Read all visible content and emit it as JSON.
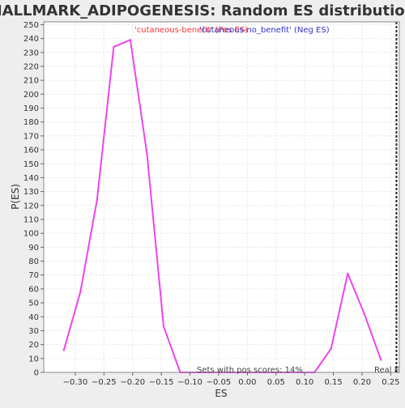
{
  "chart_data": {
    "type": "line",
    "title": "HALLMARK_ADIPOGENESIS: Random ES distribution",
    "xlabel": "ES",
    "ylabel": "P(ES)",
    "xlim": [
      -0.355,
      0.265
    ],
    "ylim": [
      0,
      252
    ],
    "xticks": [
      -0.3,
      -0.25,
      -0.2,
      -0.15,
      -0.1,
      -0.05,
      0.0,
      0.05,
      0.1,
      0.15,
      0.2,
      0.25
    ],
    "xtick_labels": [
      "−0.30",
      "−0.25",
      "−0.20",
      "−0.15",
      "−0.10",
      "−0.05",
      "0.00",
      "0.05",
      "0.10",
      "0.15",
      "0.20",
      "0.25"
    ],
    "yticks": [
      0,
      10,
      20,
      30,
      40,
      50,
      60,
      70,
      80,
      90,
      100,
      110,
      120,
      130,
      140,
      150,
      160,
      170,
      180,
      190,
      200,
      210,
      220,
      230,
      240,
      250
    ],
    "grid": true,
    "legend": [
      {
        "label": "'cutaneous-benefit' (Pos ES)",
        "color": "#ff3333"
      },
      {
        "label": "'cutaneous-no_benefit' (Neg ES)",
        "color": "#3333cc"
      }
    ],
    "series": [
      {
        "color": "#ee44ee",
        "x": [
          -0.32,
          -0.291,
          -0.262,
          -0.233,
          -0.204,
          -0.175,
          -0.146,
          -0.117,
          -0.088,
          -0.059,
          -0.03,
          0.0,
          0.03,
          0.059,
          0.088,
          0.117,
          0.146,
          0.175,
          0.204,
          0.233
        ],
        "y": [
          16,
          58,
          124,
          234,
          239,
          157,
          33,
          0,
          0,
          0,
          0,
          0,
          0,
          0,
          0,
          0,
          17,
          71,
          42,
          9
        ]
      }
    ],
    "real_es_marker": {
      "x": 0.26,
      "label": "Real E"
    },
    "annotations": {
      "pos_scores": "Sets with pos scores: 14%"
    }
  }
}
